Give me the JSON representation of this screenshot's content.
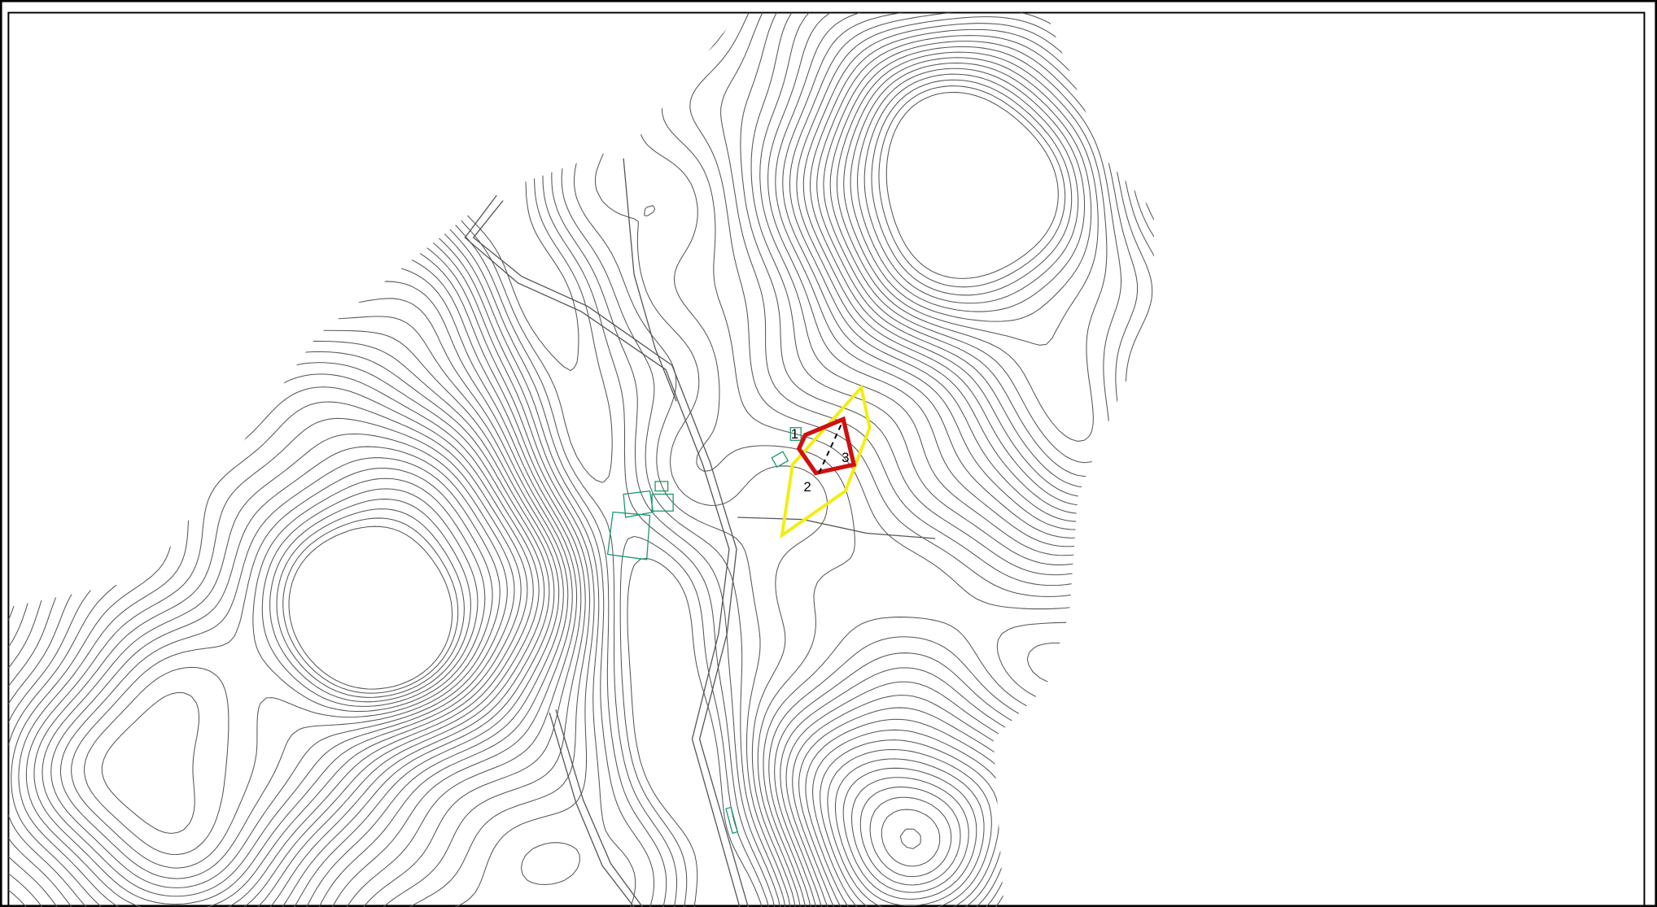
{
  "map": {
    "labels": [
      "1",
      "2",
      "3"
    ]
  }
}
